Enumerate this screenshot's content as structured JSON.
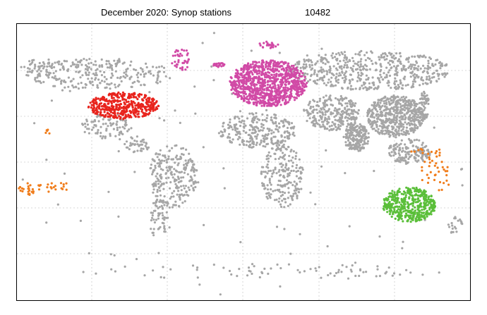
{
  "title": "December 2020: Synop stations",
  "station_count": 10482
}
